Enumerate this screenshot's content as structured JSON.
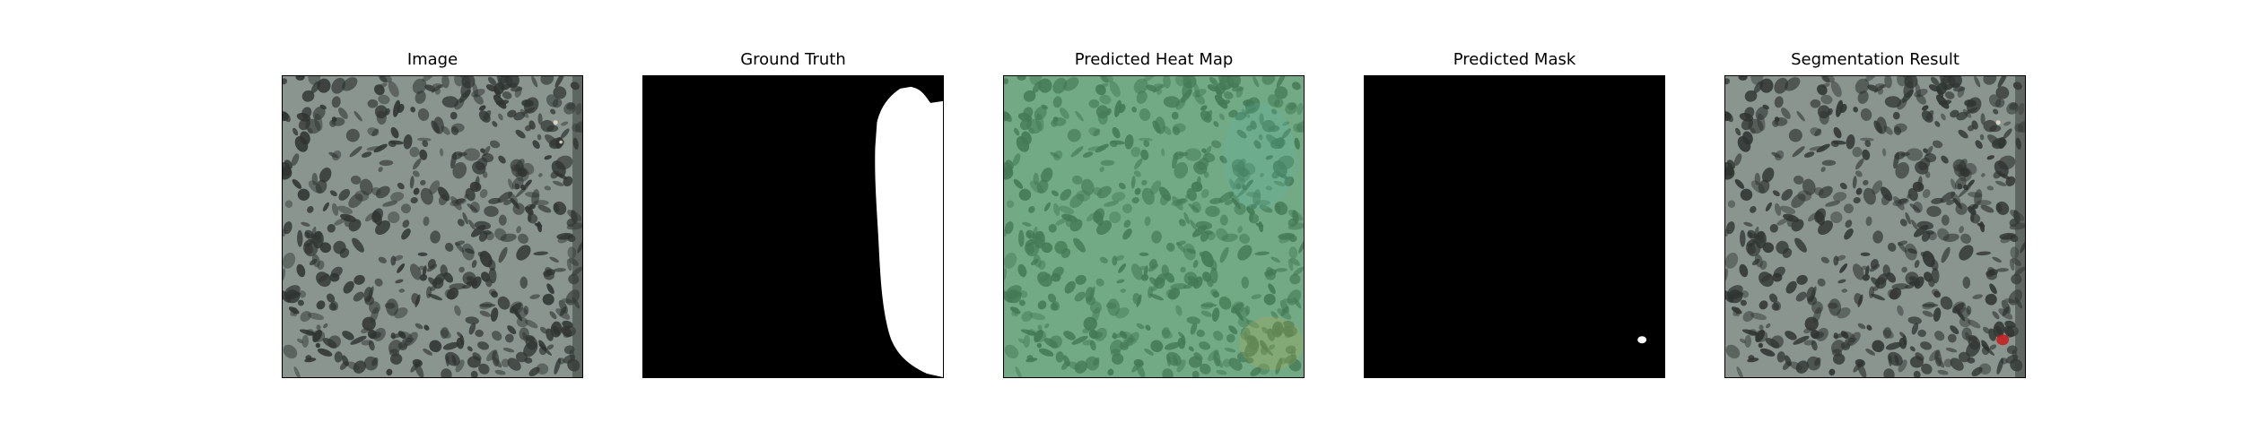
{
  "figure": {
    "panels": [
      {
        "title": "Image",
        "content": "texture-photo"
      },
      {
        "title": "Ground Truth",
        "content": "binary-mask-gt"
      },
      {
        "title": "Predicted Heat Map",
        "content": "heatmap-overlay"
      },
      {
        "title": "Predicted Mask",
        "content": "binary-mask-pred"
      },
      {
        "title": "Segmentation Result",
        "content": "segmentation-overlay"
      }
    ]
  },
  "colors": {
    "texture_base": "#8a9590",
    "texture_spot": "#2f3431",
    "heatmap_tint": "#57c07a",
    "mask_background": "#000000",
    "mask_foreground": "#ffffff",
    "segmentation_highlight": "#c81a1a"
  }
}
